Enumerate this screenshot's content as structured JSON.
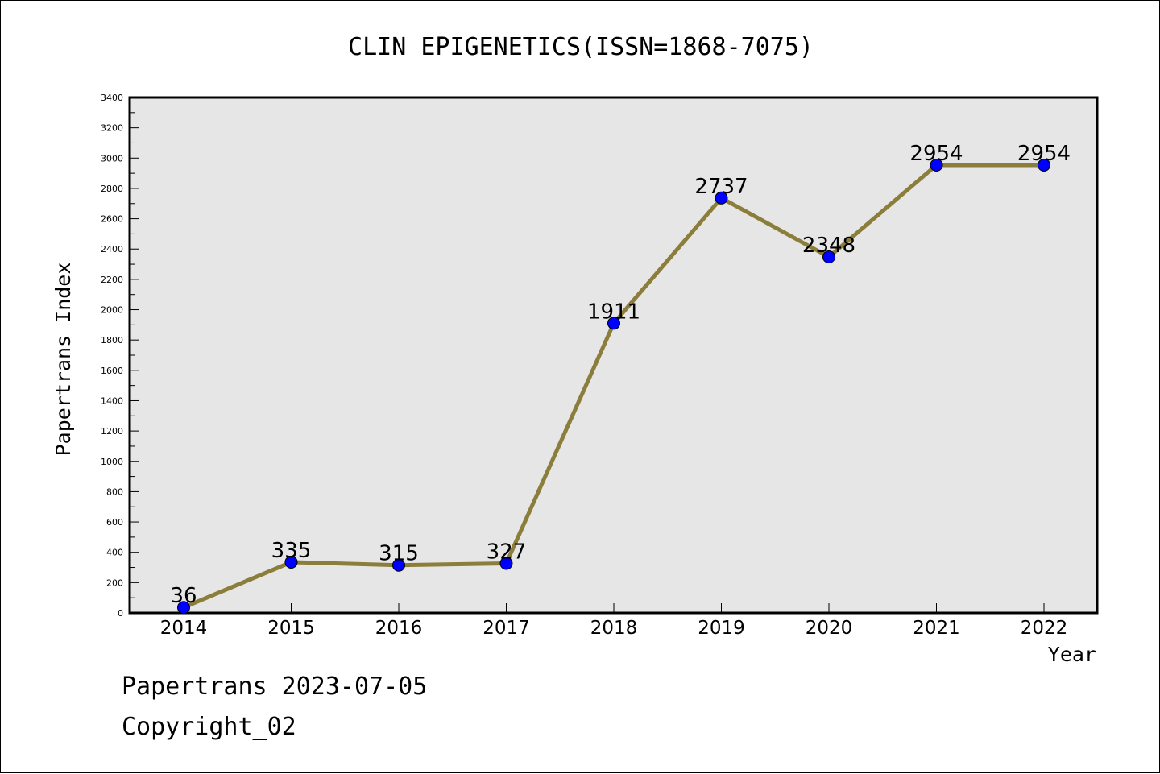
{
  "chart_data": {
    "type": "line",
    "title": "CLIN EPIGENETICS(ISSN=1868-7075)",
    "xlabel": "Year",
    "ylabel": "Papertrans Index",
    "categories": [
      "2014",
      "2015",
      "2016",
      "2017",
      "2018",
      "2019",
      "2020",
      "2021",
      "2022"
    ],
    "series": [
      {
        "values": [
          36,
          335,
          315,
          327,
          1911,
          2737,
          2348,
          2954,
          2954
        ]
      }
    ],
    "ylim": [
      0,
      3400
    ],
    "yticks": [
      0,
      200,
      400,
      600,
      800,
      1000,
      1200,
      1400,
      1600,
      1800,
      2000,
      2200,
      2400,
      2600,
      2800,
      3000,
      3200,
      3400
    ],
    "grid": false,
    "line_color": "#8b7d3a",
    "marker_color": "#0000ff",
    "plot_background": "#e6e6e6"
  },
  "footer": {
    "line1": "Papertrans 2023-07-05",
    "line2": "Copyright_02"
  }
}
